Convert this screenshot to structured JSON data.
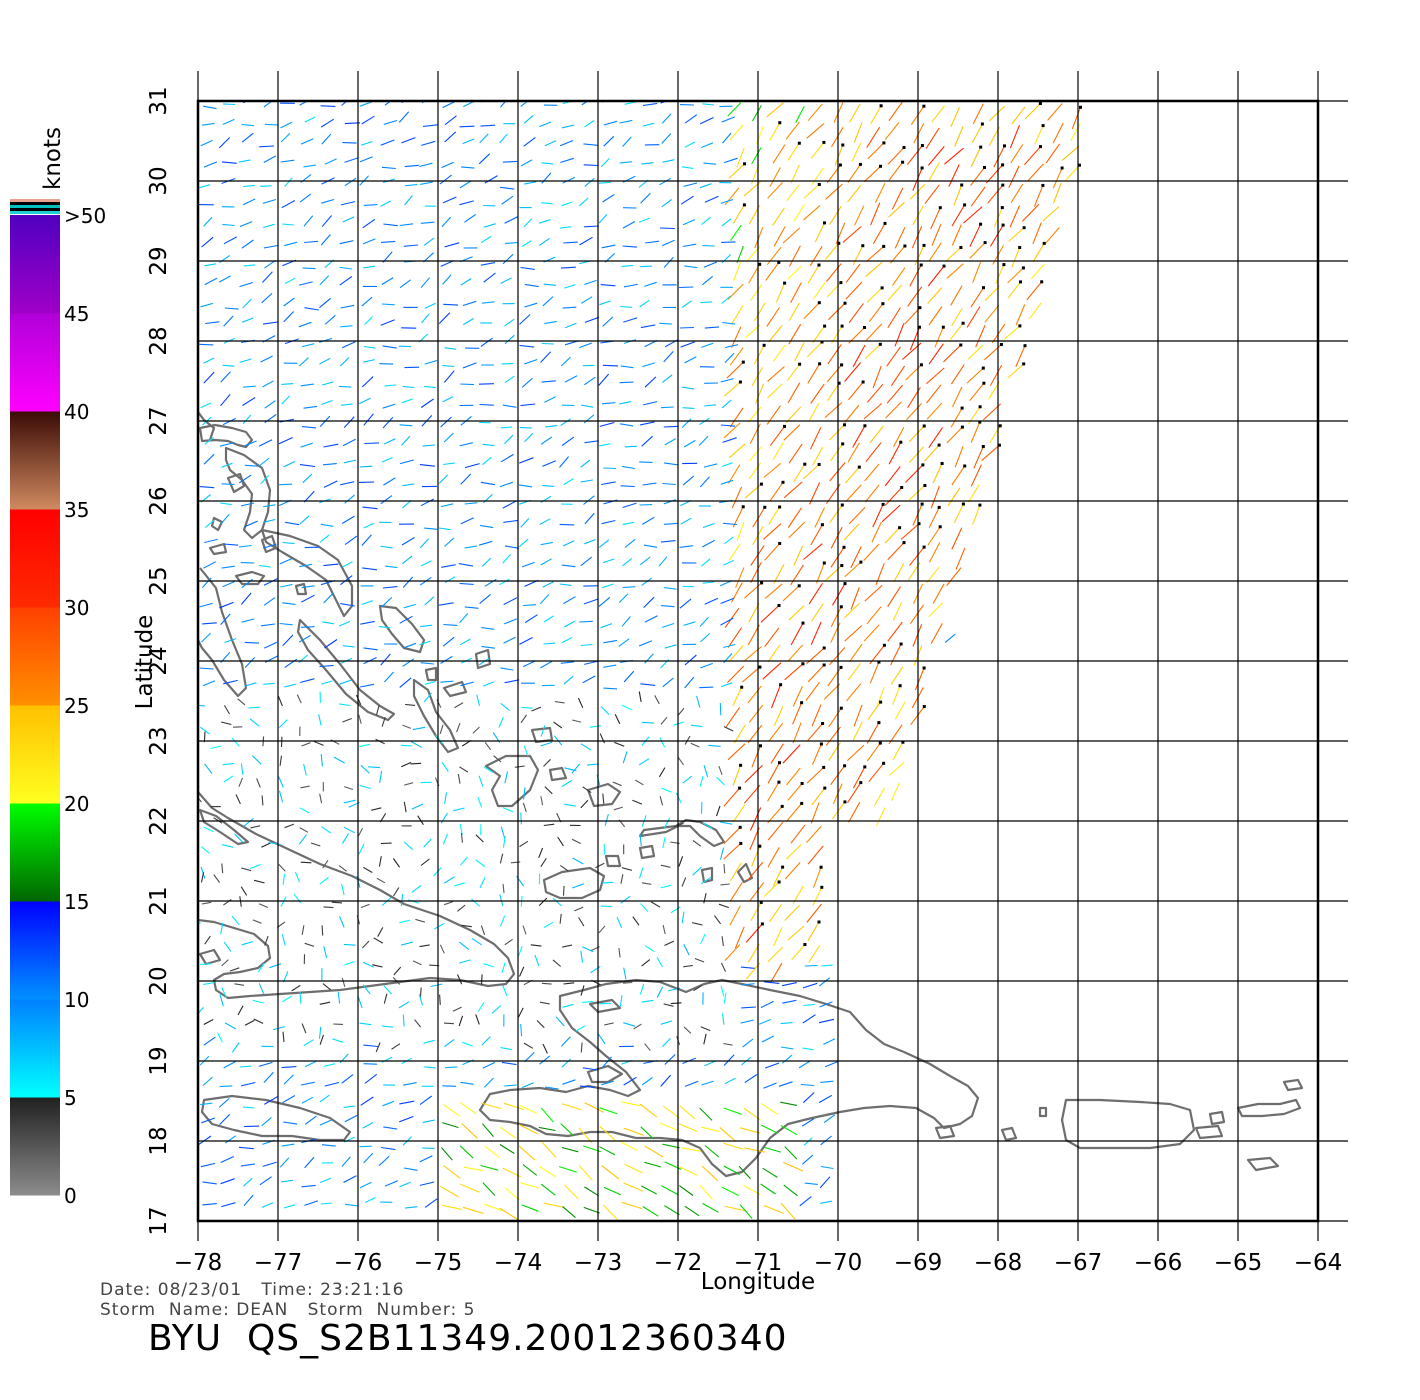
{
  "map": {
    "lon_range": [
      -78,
      -64
    ],
    "lat_range": [
      17,
      31
    ],
    "lon_ticks": [
      "−78",
      "−77",
      "−76",
      "−75",
      "−74",
      "−73",
      "−72",
      "−71",
      "−70",
      "−69",
      "−68",
      "−67",
      "−66",
      "−65",
      "−64"
    ],
    "lat_ticks": [
      "17",
      "18",
      "19",
      "20",
      "21",
      "22",
      "23",
      "24",
      "25",
      "26",
      "27",
      "28",
      "29",
      "30",
      "31"
    ],
    "xlabel": "Longitude",
    "ylabel": "Latitude",
    "grid": true,
    "land_outline_color": "#6e6e6e",
    "grid_color": "#000000"
  },
  "colorbar": {
    "units": "knots",
    "placement": "left",
    "labels": [
      "0",
      "5",
      "10",
      "15",
      "20",
      "25",
      "30",
      "35",
      "40",
      "45",
      ">50"
    ],
    "bands": [
      {
        "from": 0,
        "to": 5,
        "colors": [
          "#8c8c8c",
          "#202020"
        ]
      },
      {
        "from": 5,
        "to": 10,
        "colors": [
          "#00ffff",
          "#0080ff"
        ]
      },
      {
        "from": 10,
        "to": 15,
        "colors": [
          "#0090ff",
          "#0000ff"
        ]
      },
      {
        "from": 15,
        "to": 20,
        "colors": [
          "#006600",
          "#00ff00"
        ]
      },
      {
        "from": 20,
        "to": 25,
        "colors": [
          "#ffff20",
          "#ffc000"
        ]
      },
      {
        "from": 25,
        "to": 30,
        "colors": [
          "#ff9000",
          "#ff4000"
        ]
      },
      {
        "from": 30,
        "to": 35,
        "colors": [
          "#ff2a00",
          "#ff0000"
        ]
      },
      {
        "from": 35,
        "to": 40,
        "colors": [
          "#d08a60",
          "#3a0a05"
        ]
      },
      {
        "from": 40,
        "to": 45,
        "colors": [
          "#ff00ff",
          "#b000d8"
        ]
      },
      {
        "from": 45,
        "to": 50,
        "colors": [
          "#a000c8",
          "#5000c0"
        ]
      }
    ],
    "top_swatches": [
      "#e8a090",
      "#000000",
      "#00c0c0",
      "#000000",
      "#20d0d0"
    ]
  },
  "footer": {
    "date_label": "Date:",
    "date": "08/23/01",
    "time_label": "Time:",
    "time": "23:21:16",
    "storm_name_label": "Storm  Name:",
    "storm_name": "DEAN",
    "storm_number_label": "Storm  Number:",
    "storm_number": "5",
    "product_id": "BYU  QS_S2B11349.20012360340"
  }
}
